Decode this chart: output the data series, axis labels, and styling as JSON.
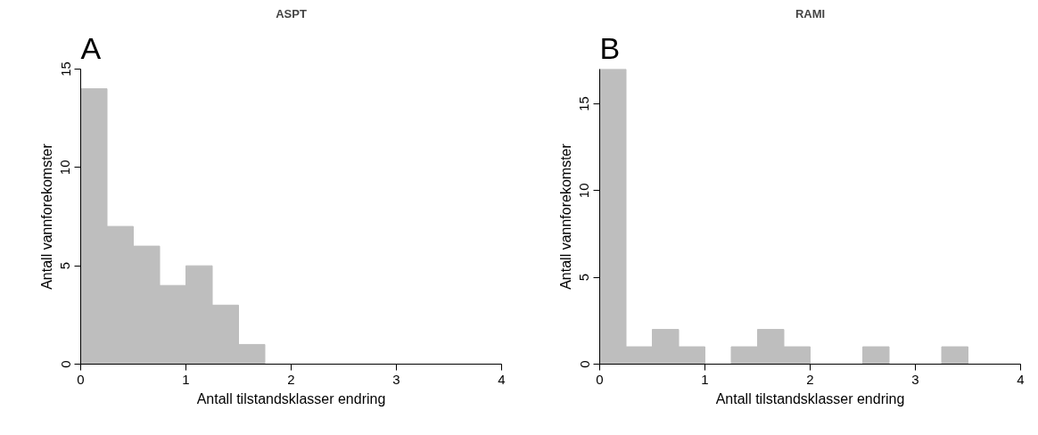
{
  "chart_data": [
    {
      "type": "histogram",
      "title": "ASPT",
      "annotations": [
        "A"
      ],
      "xlabel": "Antall tilstandsklasser endring",
      "ylabel": "Antall vannforekomster",
      "bins": [
        0,
        0.25,
        0.5,
        0.75,
        1,
        1.25,
        1.5,
        1.75,
        2,
        2.25,
        2.5,
        2.75,
        3,
        3.25,
        3.5,
        3.75,
        4
      ],
      "values": [
        14,
        7,
        6,
        4,
        5,
        3,
        1,
        0,
        0,
        0,
        0,
        0,
        0,
        0,
        0,
        0
      ],
      "color": "#bebebe",
      "xlim": [
        0,
        4
      ],
      "xticks": [
        0,
        1,
        2,
        3,
        4
      ],
      "ylim": [
        0,
        15
      ],
      "yticks": [
        0,
        5,
        10,
        15
      ],
      "grid": false
    },
    {
      "type": "histogram",
      "title": "RAMI",
      "annotations": [
        "B"
      ],
      "xlabel": "Antall tilstandsklasser endring",
      "ylabel": "Antall vannforekomster",
      "bins": [
        0,
        0.25,
        0.5,
        0.75,
        1,
        1.25,
        1.5,
        1.75,
        2,
        2.25,
        2.5,
        2.75,
        3,
        3.25,
        3.5,
        3.75,
        4
      ],
      "values": [
        17,
        1,
        2,
        1,
        0,
        1,
        2,
        1,
        0,
        0,
        1,
        0,
        0,
        1,
        0,
        0
      ],
      "color": "#bebebe",
      "xlim": [
        0,
        4
      ],
      "xticks": [
        0,
        1,
        2,
        3,
        4
      ],
      "ylim": [
        0,
        17
      ],
      "yticks": [
        0,
        5,
        10,
        15
      ],
      "grid": false
    }
  ]
}
